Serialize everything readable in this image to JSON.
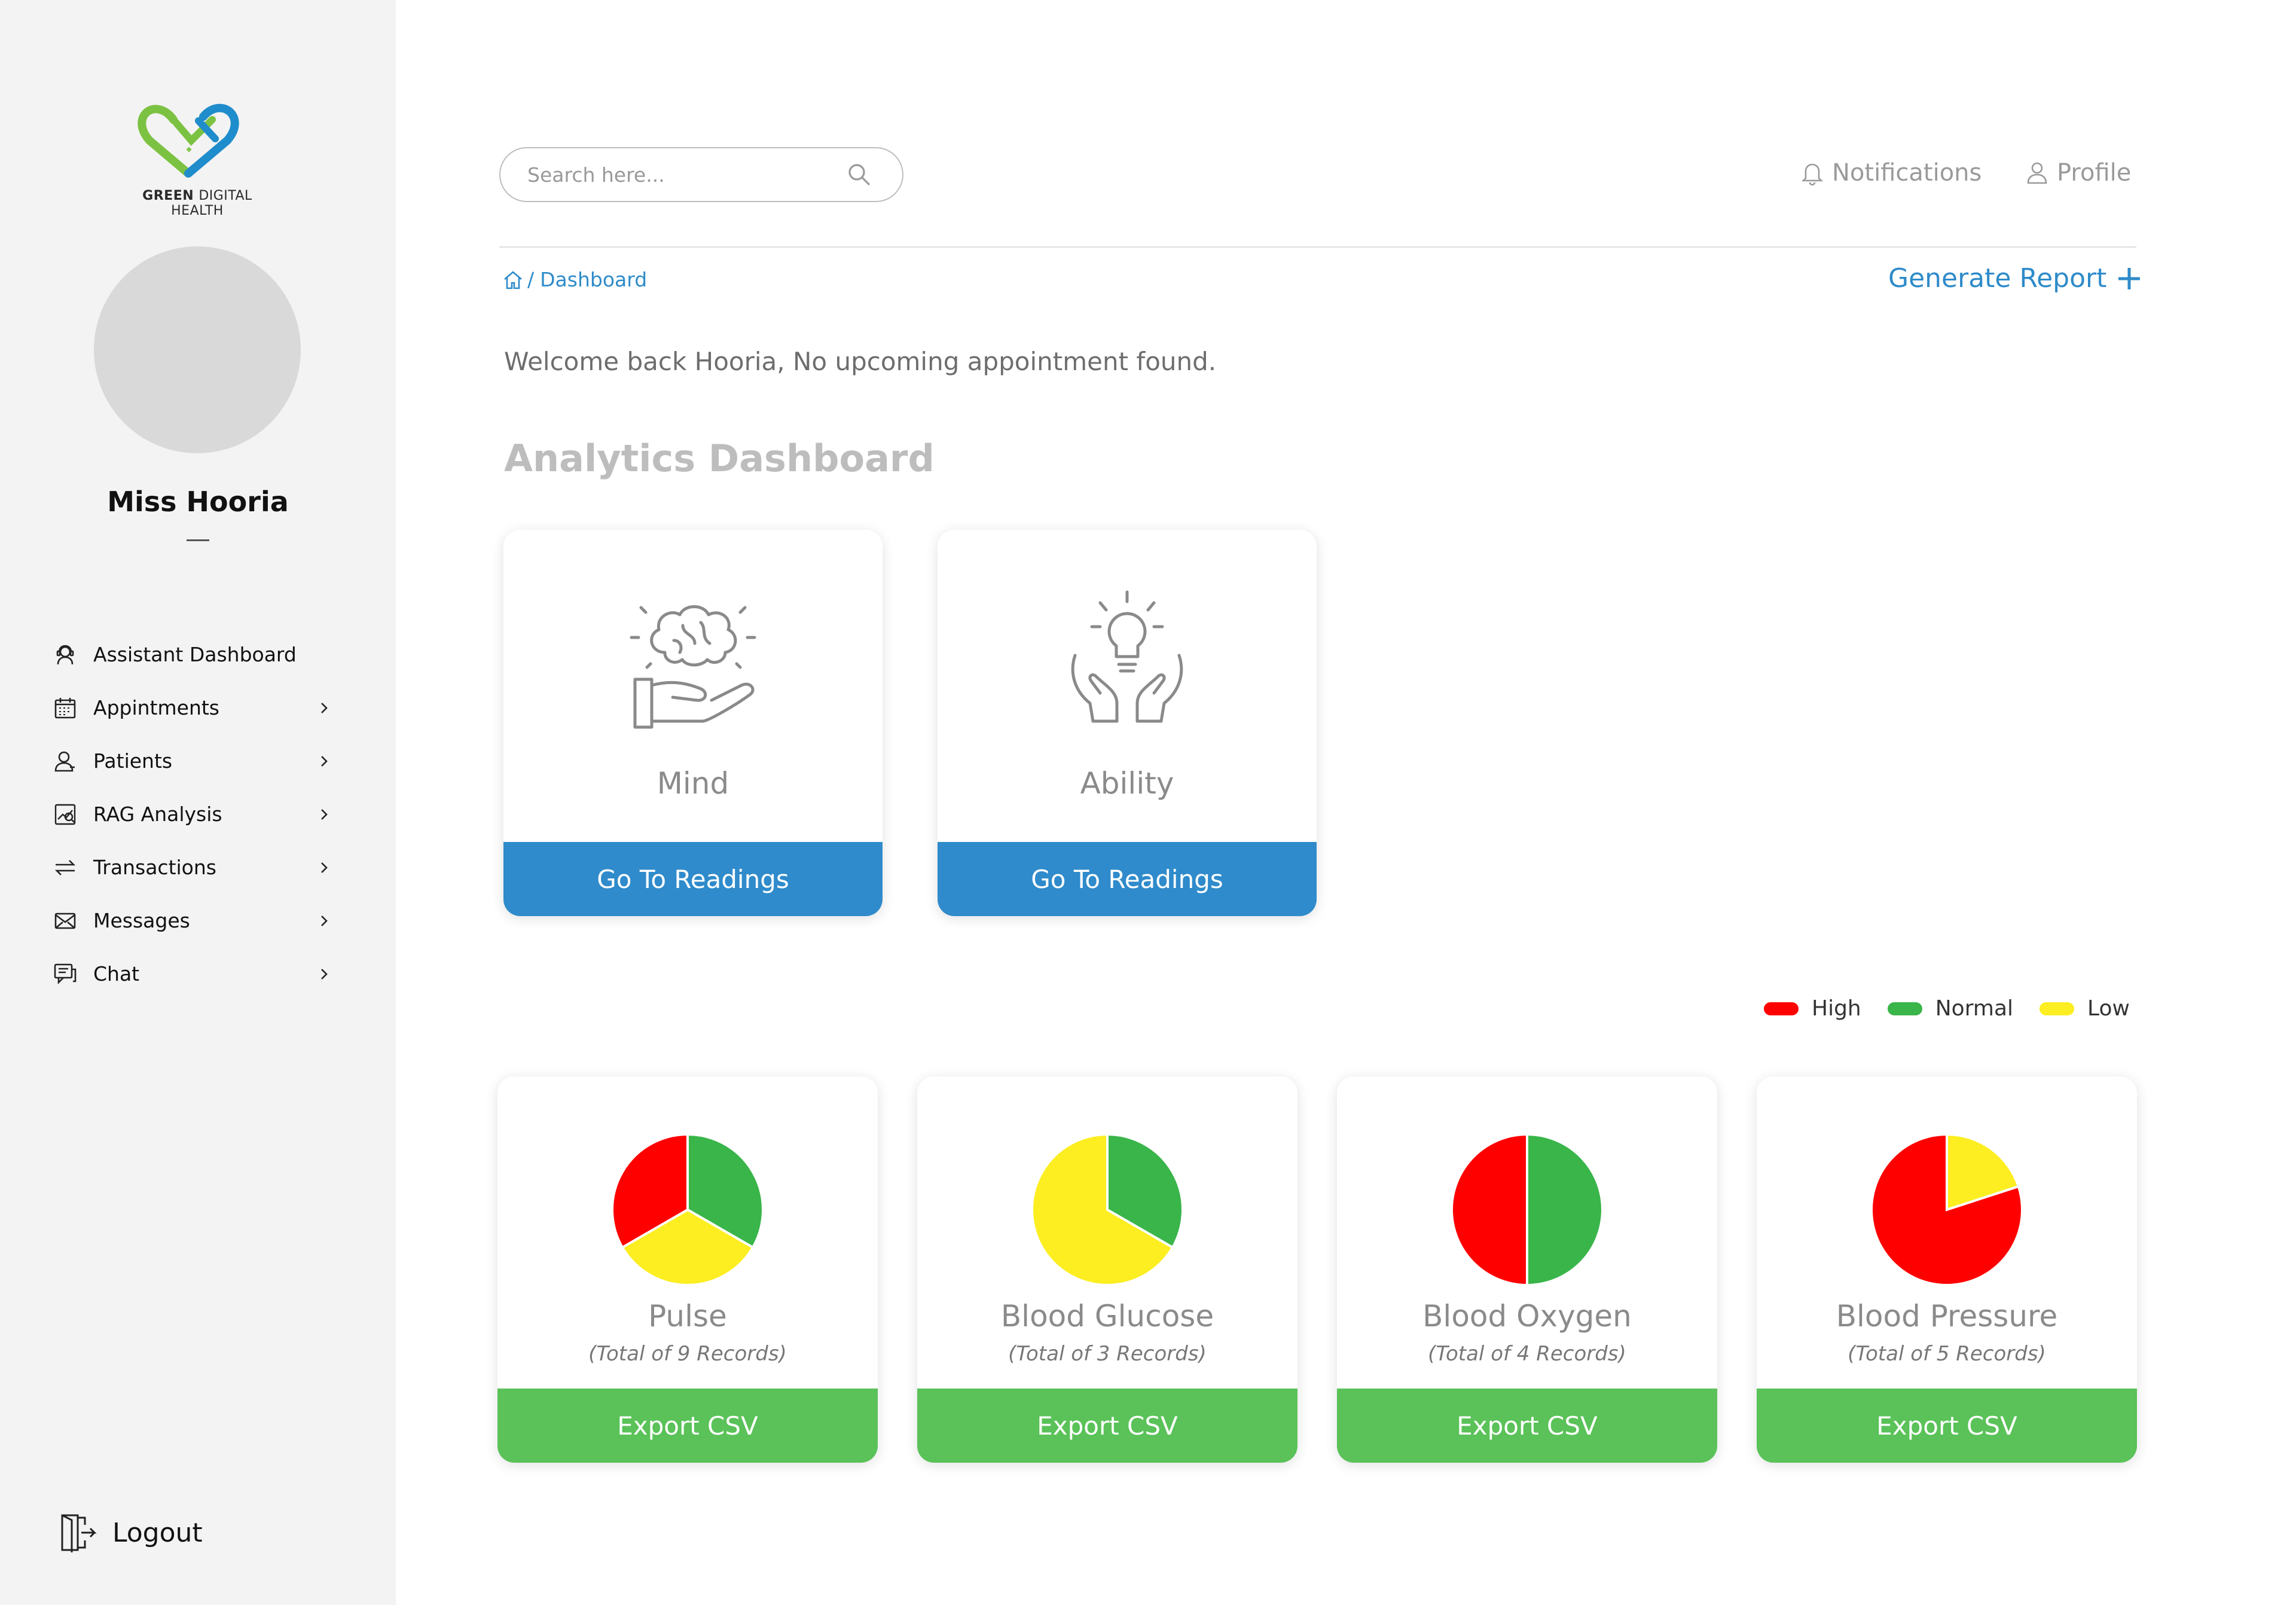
{
  "brand": {
    "name_bold": "GREEN",
    "name_rest": "DIGITAL HEALTH"
  },
  "user": {
    "name": "Miss Hooria"
  },
  "sidebar": {
    "items": [
      {
        "label": "Assistant Dashboard",
        "icon": "assistant-icon",
        "chevron": false
      },
      {
        "label": "Appintments",
        "icon": "calendar-icon",
        "chevron": true
      },
      {
        "label": "Patients",
        "icon": "patients-icon",
        "chevron": true
      },
      {
        "label": "RAG Analysis",
        "icon": "rag-analysis-icon",
        "chevron": true
      },
      {
        "label": "Transactions",
        "icon": "transactions-icon",
        "chevron": true
      },
      {
        "label": "Messages",
        "icon": "messages-icon",
        "chevron": true
      },
      {
        "label": "Chat",
        "icon": "chat-icon",
        "chevron": true
      }
    ],
    "logout_label": "Logout"
  },
  "header": {
    "search_placeholder": "Search here...",
    "notifications_label": "Notifications",
    "profile_label": "Profile"
  },
  "breadcrumb": {
    "separator": "/",
    "current": "Dashboard"
  },
  "generate_report_label": "Generate Report",
  "welcome_text": "Welcome back Hooria, No upcoming appointment found.",
  "section_title": "Analytics Dashboard",
  "modules": [
    {
      "title": "Mind",
      "icon": "brain-hand-icon",
      "button_label": "Go To Readings"
    },
    {
      "title": "Ability",
      "icon": "lightbulb-hands-icon",
      "button_label": "Go To Readings"
    }
  ],
  "legend": [
    {
      "label": "High",
      "color": "#ff0000"
    },
    {
      "label": "Normal",
      "color": "#39b54a"
    },
    {
      "label": "Low",
      "color": "#fcee21"
    }
  ],
  "chart_data": [
    {
      "type": "pie",
      "title": "Pulse",
      "subtitle": "(Total of 9 Records)",
      "categories": [
        "High",
        "Normal",
        "Low"
      ],
      "values": [
        3,
        3,
        3
      ]
    },
    {
      "type": "pie",
      "title": "Blood Glucose",
      "subtitle": "(Total of 3 Records)",
      "categories": [
        "High",
        "Normal",
        "Low"
      ],
      "values": [
        0,
        1,
        2
      ]
    },
    {
      "type": "pie",
      "title": "Blood Oxygen",
      "subtitle": "(Total of 4 Records)",
      "categories": [
        "High",
        "Normal",
        "Low"
      ],
      "values": [
        2,
        2,
        0
      ]
    },
    {
      "type": "pie",
      "title": "Blood Pressure",
      "subtitle": "(Total of 5 Records)",
      "categories": [
        "High",
        "Normal",
        "Low"
      ],
      "values": [
        4,
        0,
        1
      ]
    }
  ],
  "export_label": "Export CSV"
}
